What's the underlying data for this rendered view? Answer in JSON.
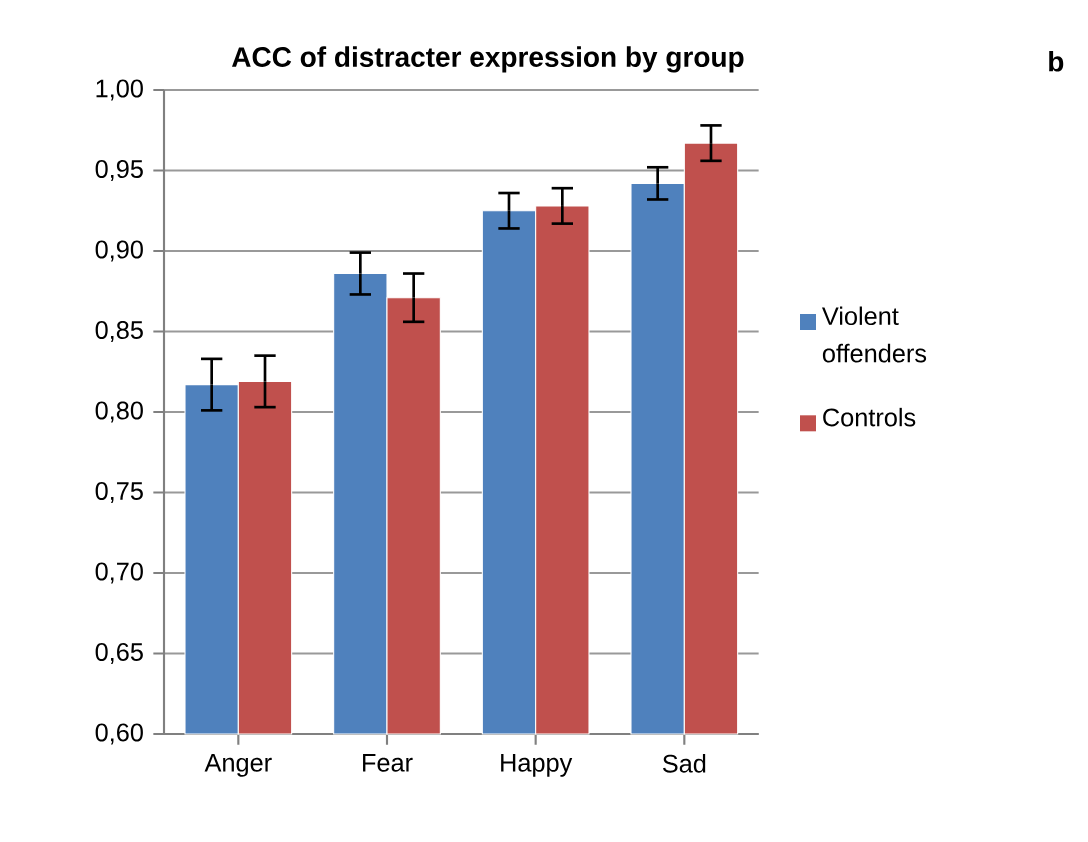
{
  "chart_data": {
    "type": "bar",
    "title": "ACC of distracter expression by group",
    "annotations": [
      "b"
    ],
    "categories": [
      "Anger",
      "Fear",
      "Happy",
      "Sad"
    ],
    "series": [
      {
        "name": "Violent offenders",
        "color": "#4f81bd",
        "values": [
          0.817,
          0.886,
          0.925,
          0.942
        ],
        "errors": [
          0.016,
          0.013,
          0.011,
          0.01
        ]
      },
      {
        "name": "Controls",
        "color": "#c0504d",
        "values": [
          0.819,
          0.871,
          0.928,
          0.967
        ],
        "errors": [
          0.016,
          0.015,
          0.011,
          0.011
        ]
      }
    ],
    "ylim": [
      0.6,
      1.0
    ],
    "yticks": [
      {
        "value": 0.6,
        "label": "0,60"
      },
      {
        "value": 0.65,
        "label": "0,65"
      },
      {
        "value": 0.7,
        "label": "0,70"
      },
      {
        "value": 0.75,
        "label": "0,75"
      },
      {
        "value": 0.8,
        "label": "0,80"
      },
      {
        "value": 0.85,
        "label": "0,85"
      },
      {
        "value": 0.9,
        "label": "0,90"
      },
      {
        "value": 0.95,
        "label": "0,95"
      },
      {
        "value": 1.0,
        "label": "1,00"
      }
    ],
    "grid": "y",
    "legend": "right"
  }
}
